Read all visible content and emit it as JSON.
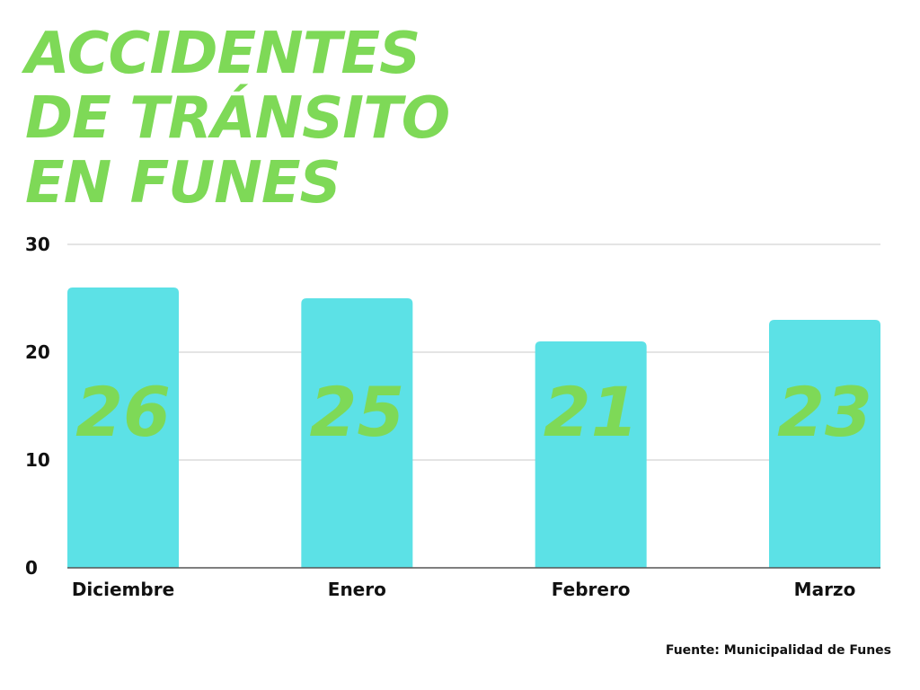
{
  "title_lines": [
    "ACCIDENTES",
    "DE TRÁNSITO",
    "EN FUNES"
  ],
  "source": "Fuente: Municipalidad de Funes",
  "chart_data": {
    "type": "bar",
    "title": "ACCIDENTES DE TRÁNSITO EN FUNES",
    "categories": [
      "Diciembre",
      "Enero",
      "Febrero",
      "Marzo"
    ],
    "values": [
      26,
      25,
      21,
      23
    ],
    "value_labels": [
      "26",
      "25",
      "21",
      "23"
    ],
    "xlabel": "",
    "ylabel": "",
    "ylim": [
      0,
      30
    ],
    "yticks": [
      0,
      10,
      20,
      30
    ],
    "ytick_labels": [
      "0",
      "10",
      "20",
      "30"
    ],
    "grid": true,
    "legend": "none",
    "colors": {
      "bar": "#5ce1e6",
      "title": "#7ed957",
      "value_label": "#7ed957",
      "grid": "#c8c8c8",
      "axis": "#555555",
      "text": "#111111"
    }
  }
}
